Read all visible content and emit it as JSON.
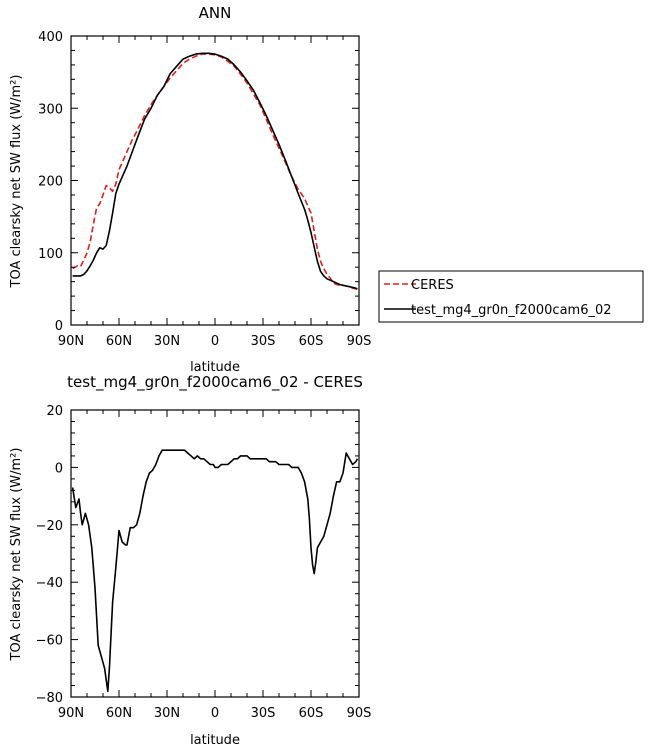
{
  "chart_data": [
    {
      "type": "line",
      "title": "ANN",
      "xlabel": "latitude",
      "ylabel": "TOA clearsky net SW flux (W/m²)",
      "xlim": [
        90,
        -90
      ],
      "ylim": [
        0,
        400
      ],
      "xticks": [
        90,
        60,
        30,
        0,
        -30,
        -60,
        -90
      ],
      "xtick_labels": [
        "90N",
        "60N",
        "30N",
        "0",
        "30S",
        "60S",
        "90S"
      ],
      "yticks": [
        0,
        100,
        200,
        300,
        400
      ],
      "ytick_labels": [
        "0",
        "100",
        "200",
        "300",
        "400"
      ],
      "legend_position": "right",
      "series": [
        {
          "name": "CERES",
          "color": "#e02020",
          "dash": "dashed",
          "x": [
            89,
            86,
            84,
            82,
            80,
            78,
            76,
            74,
            72,
            70,
            68,
            66,
            64,
            62,
            60,
            58,
            55,
            52,
            48,
            44,
            40,
            36,
            32,
            28,
            24,
            20,
            16,
            12,
            8,
            4,
            0,
            -4,
            -8,
            -12,
            -16,
            -20,
            -24,
            -28,
            -32,
            -36,
            -40,
            -44,
            -48,
            -52,
            -56,
            -58,
            -60,
            -62,
            -64,
            -66,
            -68,
            -70,
            -72,
            -74,
            -76,
            -78,
            -80,
            -82,
            -84,
            -86,
            -88,
            -89
          ],
          "y": [
            78,
            82,
            81,
            90,
            100,
            115,
            140,
            162,
            168,
            180,
            193,
            190,
            185,
            195,
            215,
            225,
            240,
            255,
            272,
            290,
            305,
            318,
            330,
            342,
            352,
            362,
            368,
            372,
            375,
            375,
            374,
            371,
            365,
            358,
            347,
            335,
            320,
            305,
            285,
            264,
            245,
            225,
            205,
            188,
            175,
            165,
            155,
            130,
            105,
            88,
            78,
            70,
            65,
            58,
            56,
            55,
            55,
            54,
            53,
            51,
            50,
            49
          ]
        },
        {
          "name": "test_mg4_gr0n_f2000cam6_02",
          "color": "#000000",
          "dash": "solid",
          "x": [
            89,
            86,
            84,
            82,
            80,
            78,
            76,
            74,
            72,
            70,
            68,
            66,
            64,
            62,
            60,
            58,
            55,
            52,
            48,
            44,
            40,
            36,
            32,
            28,
            24,
            20,
            16,
            12,
            8,
            4,
            0,
            -4,
            -8,
            -12,
            -16,
            -20,
            -24,
            -28,
            -32,
            -36,
            -40,
            -44,
            -48,
            -52,
            -56,
            -58,
            -60,
            -62,
            -64,
            -66,
            -68,
            -70,
            -72,
            -74,
            -76,
            -78,
            -80,
            -82,
            -84,
            -86,
            -88,
            -89
          ],
          "y": [
            68,
            68,
            68,
            70,
            75,
            82,
            90,
            100,
            107,
            105,
            110,
            130,
            155,
            182,
            195,
            205,
            220,
            238,
            262,
            285,
            300,
            318,
            330,
            348,
            358,
            368,
            372,
            375,
            376,
            376,
            375,
            372,
            368,
            360,
            350,
            338,
            325,
            308,
            290,
            270,
            250,
            228,
            205,
            182,
            160,
            145,
            128,
            108,
            88,
            74,
            68,
            64,
            62,
            60,
            58,
            56,
            55,
            54,
            53,
            52,
            51,
            50
          ]
        }
      ]
    },
    {
      "type": "line",
      "title": "test_mg4_gr0n_f2000cam6_02 - CERES",
      "xlabel": "latitude",
      "ylabel": "TOA clearsky net SW flux (W/m²)",
      "xlim": [
        90,
        -90
      ],
      "ylim": [
        -80,
        20
      ],
      "xticks": [
        90,
        60,
        30,
        0,
        -30,
        -60,
        -90
      ],
      "xtick_labels": [
        "90N",
        "60N",
        "30N",
        "0",
        "30S",
        "60S",
        "90S"
      ],
      "yticks": [
        -80,
        -60,
        -40,
        -20,
        0,
        20
      ],
      "ytick_labels": [
        "−80",
        "−60",
        "−40",
        "−20",
        "0",
        "20"
      ],
      "series": [
        {
          "color": "#000000",
          "dash": "solid",
          "x": [
            89,
            87,
            85,
            84,
            83,
            82,
            81,
            79,
            77,
            75,
            73,
            71,
            69,
            68,
            67,
            66,
            64,
            62,
            60,
            58,
            56,
            55,
            53,
            51,
            49,
            47,
            45,
            43,
            41,
            39,
            37,
            35,
            33,
            31,
            29,
            27,
            25,
            22,
            19,
            17,
            15,
            13,
            11,
            9,
            7,
            5,
            3,
            1,
            0,
            -2,
            -4,
            -6,
            -8,
            -10,
            -12,
            -14,
            -16,
            -18,
            -20,
            -22,
            -24,
            -26,
            -28,
            -30,
            -32,
            -34,
            -36,
            -38,
            -40,
            -42,
            -44,
            -46,
            -48,
            -50,
            -52,
            -54,
            -56,
            -58,
            -59,
            -60,
            -61,
            -62,
            -63,
            -64,
            -66,
            -68,
            -70,
            -72,
            -74,
            -76,
            -78,
            -80,
            -82,
            -84,
            -86,
            -88,
            -89
          ],
          "y": [
            -7,
            -14,
            -11,
            -16,
            -20,
            -18,
            -16,
            -20,
            -28,
            -42,
            -62,
            -66,
            -70,
            -74,
            -78,
            -70,
            -47,
            -35,
            -22,
            -26,
            -27,
            -27,
            -21,
            -21,
            -20,
            -16,
            -10,
            -5,
            -2,
            -1,
            1,
            4,
            6,
            6,
            6,
            6,
            6,
            6,
            6,
            5,
            4,
            3,
            4,
            3,
            3,
            2,
            1,
            1,
            0,
            0,
            1,
            1,
            1,
            2,
            3,
            3,
            4,
            4,
            4,
            3,
            3,
            3,
            3,
            3,
            3,
            2,
            2,
            2,
            1,
            1,
            1,
            1,
            0,
            0,
            0,
            -2,
            -5,
            -11,
            -18,
            -28,
            -34,
            -37,
            -33,
            -28,
            -26,
            -24,
            -20,
            -16,
            -10,
            -5,
            -5,
            -2,
            5,
            3,
            1,
            2,
            3
          ]
        }
      ]
    }
  ]
}
